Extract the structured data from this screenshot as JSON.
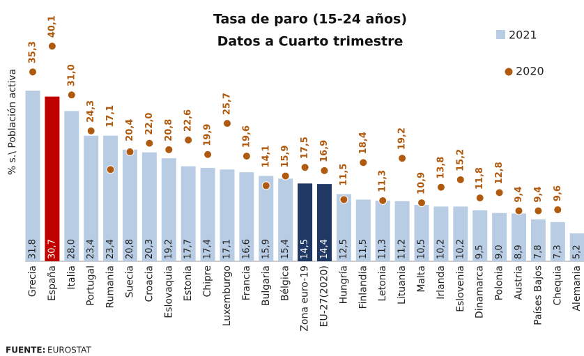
{
  "chart_data": {
    "type": "bar",
    "title": [
      "Tasa de paro (15-24 años)",
      "Datos a Cuarto trimestre"
    ],
    "y_label": "% s.\\ Población activa",
    "source_label": "FUENTE:",
    "source": "EUROSTAT",
    "categories": [
      "Grecia",
      "España",
      "Italia",
      "Portugal",
      "Rumania",
      "Suecia",
      "Croacia",
      "Eslovaquia",
      "Estonia",
      "Chipre",
      "Luxemburgo",
      "Francia",
      "Bulgaria",
      "Bélgica",
      "Zona euro-19",
      "EU-27(2020)",
      "Hungría",
      "Finlandia",
      "Letonia",
      "Lituania",
      "Malta",
      "Irlanda",
      "Eslovenia",
      "Dinamarca",
      "Polonia",
      "Austria",
      "Países Bajos",
      "Chequia",
      "Alemania"
    ],
    "ylim": [
      0,
      45
    ],
    "series": [
      {
        "name": "2021",
        "color": "#b8cce4",
        "colors": [
          "#b8cce4",
          "#c00000",
          "#b8cce4",
          "#b8cce4",
          "#b8cce4",
          "#b8cce4",
          "#b8cce4",
          "#b8cce4",
          "#b8cce4",
          "#b8cce4",
          "#b8cce4",
          "#b8cce4",
          "#b8cce4",
          "#b8cce4",
          "#1f3864",
          "#1f3864",
          "#b8cce4",
          "#b8cce4",
          "#b8cce4",
          "#b8cce4",
          "#b8cce4",
          "#b8cce4",
          "#b8cce4",
          "#b8cce4",
          "#b8cce4",
          "#b8cce4",
          "#b8cce4",
          "#b8cce4",
          "#b8cce4"
        ],
        "values": [
          31.8,
          30.7,
          28.0,
          23.4,
          23.4,
          20.8,
          20.3,
          19.2,
          17.7,
          17.4,
          17.1,
          16.6,
          15.9,
          15.4,
          14.5,
          14.4,
          12.5,
          11.5,
          11.3,
          11.2,
          10.5,
          10.2,
          10.2,
          9.5,
          9.0,
          8.9,
          7.8,
          7.3,
          5.2
        ],
        "value_labels": [
          "31,8",
          "30,7",
          "28,0",
          "23,4",
          "23,4",
          "20,8",
          "20,3",
          "19,2",
          "17,7",
          "17,4",
          "17,1",
          "16,6",
          "15,9",
          "15,4",
          "14,5",
          "14,4",
          "12,5",
          "11,5",
          "11,3",
          "11,2",
          "10,5",
          "10,2",
          "10,2",
          "9,5",
          "9,0",
          "8,9",
          "7,8",
          "7,3",
          "5,2"
        ]
      },
      {
        "name": "2020",
        "color": "#b05a0f",
        "values": [
          35.3,
          40.1,
          31.0,
          24.3,
          17.1,
          20.4,
          22.0,
          20.8,
          22.6,
          19.9,
          25.7,
          19.6,
          14.1,
          15.9,
          17.5,
          16.9,
          11.5,
          18.4,
          11.3,
          19.2,
          10.9,
          13.8,
          15.2,
          11.8,
          12.8,
          9.4,
          9.4,
          9.6,
          null
        ],
        "value_labels": [
          "35,3",
          "40,1",
          "31,0",
          "24,3",
          "17,1",
          "20,4",
          "22,0",
          "20,8",
          "22,6",
          "19,9",
          "25,7",
          "19,6",
          "14,1",
          "15,9",
          "17,5",
          "16,9",
          "11,5",
          "18,4",
          "11,3",
          "19,2",
          "10,9",
          "13,8",
          "15,2",
          "11,8",
          "12,8",
          "9,4",
          "9,4",
          "9,6",
          null
        ]
      }
    ]
  }
}
